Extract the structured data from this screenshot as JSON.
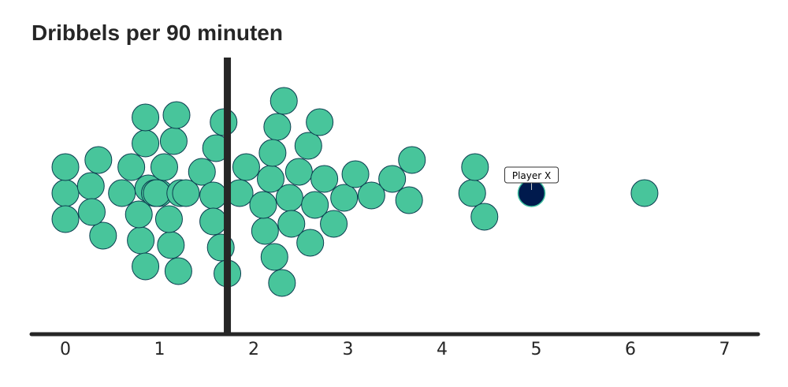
{
  "chart_data": {
    "type": "scatter",
    "title": "Dribbels per 90 minuten",
    "xlabel": "",
    "ylabel": "",
    "xlim": [
      0,
      7
    ],
    "x_ticks": [
      0,
      1,
      2,
      3,
      4,
      5,
      6,
      7
    ],
    "reference_line_x": 1.72,
    "grid": false,
    "legend": "none",
    "points": [
      0.0,
      0.0,
      0.0,
      0.27,
      0.35,
      0.4,
      0.28,
      0.6,
      0.7,
      0.85,
      0.8,
      0.85,
      0.78,
      0.88,
      0.85,
      0.95,
      1.0,
      0.97,
      1.12,
      1.2,
      1.05,
      1.1,
      1.22,
      1.15,
      1.28,
      1.18,
      1.45,
      1.57,
      1.65,
      1.57,
      1.6,
      1.68,
      1.72,
      1.85,
      1.92,
      2.12,
      2.1,
      2.18,
      2.25,
      2.22,
      2.3,
      2.38,
      2.2,
      2.32,
      2.4,
      2.48,
      2.6,
      2.58,
      2.65,
      2.75,
      2.7,
      2.85,
      2.96,
      3.08,
      3.25,
      3.47,
      3.68,
      3.65,
      4.32,
      4.35,
      4.45,
      6.15
    ],
    "highlight": {
      "label": "Player X",
      "value": 4.95
    },
    "colors": {
      "points": "#48c59b",
      "point_outline": "#0b3d4f",
      "highlight": "#001a4d",
      "highlight_outline": "#3ec1a0",
      "axis": "#262626"
    }
  }
}
